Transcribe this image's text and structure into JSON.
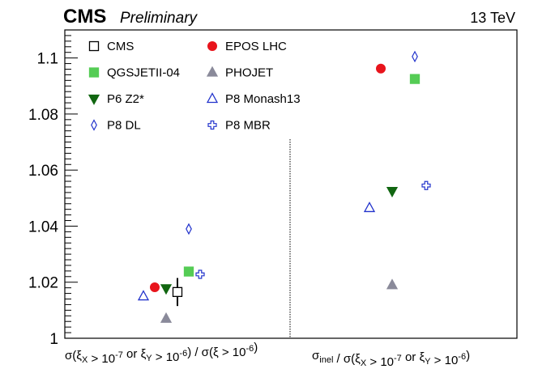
{
  "header": {
    "experiment": "CMS",
    "status": "Preliminary",
    "energy": "13 TeV"
  },
  "chart_data": {
    "type": "scatter",
    "ylim": [
      1.0,
      1.11
    ],
    "yticks": [
      1,
      1.02,
      1.04,
      1.06,
      1.08,
      1.1
    ],
    "ytick_labels": [
      "1",
      "1.02",
      "1.04",
      "1.06",
      "1.08",
      "1.1"
    ],
    "grid": false,
    "legend_position": "top-left",
    "categories": [
      {
        "label": "σ(ξX > 10⁻⁷ or ξY > 10⁻⁶) / σ(ξ > 10⁻⁶)"
      },
      {
        "label": "σinel / σ(ξX > 10⁻⁷ or ξY > 10⁻⁶)"
      }
    ],
    "series": [
      {
        "name": "CMS",
        "marker": "open-square",
        "color": "#000000",
        "points": [
          {
            "category": 0,
            "y": 1.0165,
            "yerr": 0.005
          }
        ]
      },
      {
        "name": "EPOS LHC",
        "marker": "filled-circle",
        "color": "#e8141c",
        "points": [
          {
            "category": 0,
            "y": 1.0182
          },
          {
            "category": 1,
            "y": 1.0962
          }
        ]
      },
      {
        "name": "QGSJETII-04",
        "marker": "filled-square",
        "color": "#55cc55",
        "points": [
          {
            "category": 0,
            "y": 1.0238
          },
          {
            "category": 1,
            "y": 1.0925
          }
        ]
      },
      {
        "name": "PHOJET",
        "marker": "filled-triangle-up",
        "color": "#8a8a9a",
        "points": [
          {
            "category": 0,
            "y": 1.007
          },
          {
            "category": 1,
            "y": 1.019
          }
        ]
      },
      {
        "name": "P6 Z2*",
        "marker": "filled-triangle-down",
        "color": "#116611",
        "points": [
          {
            "category": 0,
            "y": 1.0178
          },
          {
            "category": 1,
            "y": 1.0525
          }
        ]
      },
      {
        "name": "P8 Monash13",
        "marker": "open-triangle-up",
        "color": "#2233cc",
        "points": [
          {
            "category": 0,
            "y": 1.015
          },
          {
            "category": 1,
            "y": 1.0465
          }
        ]
      },
      {
        "name": "P8 DL",
        "marker": "open-diamond",
        "color": "#2233cc",
        "points": [
          {
            "category": 0,
            "y": 1.039
          },
          {
            "category": 1,
            "y": 1.1005
          }
        ]
      },
      {
        "name": "P8 MBR",
        "marker": "open-cross",
        "color": "#2233cc",
        "points": [
          {
            "category": 0,
            "y": 1.0228
          },
          {
            "category": 1,
            "y": 1.0545
          }
        ]
      }
    ]
  }
}
